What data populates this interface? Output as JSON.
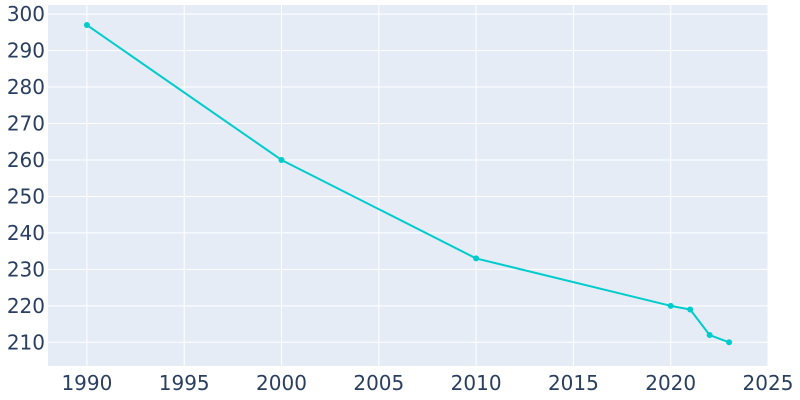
{
  "chart_data": {
    "type": "line",
    "title": "",
    "xlabel": "",
    "ylabel": "",
    "x": [
      1990,
      2000,
      2010,
      2020,
      2021,
      2022,
      2023
    ],
    "series": [
      {
        "values": [
          297,
          260,
          233,
          220,
          219,
          212,
          210
        ]
      }
    ],
    "xlim": [
      1988,
      2025
    ],
    "ylim": [
      203.5,
      302.5
    ],
    "xticks": [
      1990,
      1995,
      2000,
      2005,
      2010,
      2015,
      2020,
      2025
    ],
    "yticks": [
      210,
      220,
      230,
      240,
      250,
      260,
      270,
      280,
      290,
      300
    ],
    "grid": true,
    "legend": "none",
    "colors": {
      "line": "#00cccc",
      "plot_background": "#e5ecf6",
      "grid": "#ffffff",
      "tick_text": "#2a3f5f"
    }
  }
}
